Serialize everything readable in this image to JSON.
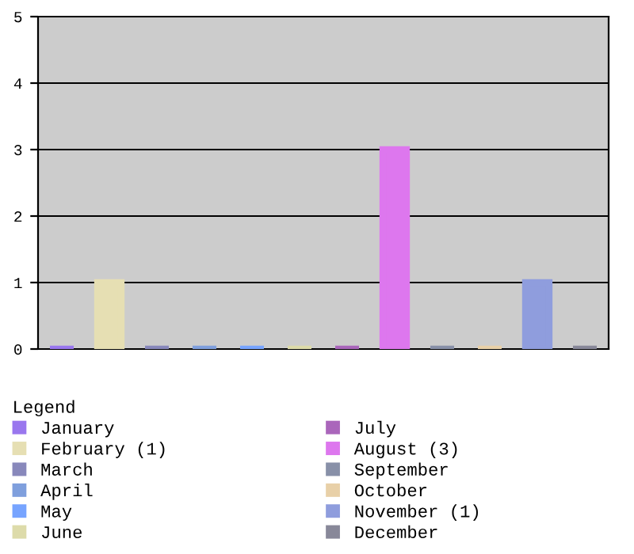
{
  "chart_data": {
    "type": "bar",
    "categories": [
      null,
      null,
      null,
      null,
      null,
      null,
      null,
      null,
      null,
      null,
      null,
      null
    ],
    "legend_title": "Legend",
    "legend": "bottom",
    "grid": "y",
    "ylim": [
      0,
      5
    ],
    "yticks": [
      0,
      1,
      2,
      3,
      4,
      5
    ],
    "series": [
      {
        "name": "January",
        "color": "#9977ee",
        "values": [
          0,
          null,
          null,
          null,
          null,
          null,
          null,
          null,
          null,
          null,
          null,
          null
        ]
      },
      {
        "name": "February (1)",
        "color": "#e6dfb3",
        "values": [
          null,
          1,
          null,
          null,
          null,
          null,
          null,
          null,
          null,
          null,
          null,
          null
        ]
      },
      {
        "name": "March",
        "color": "#8888bb",
        "values": [
          null,
          null,
          0,
          null,
          null,
          null,
          null,
          null,
          null,
          null,
          null,
          null
        ]
      },
      {
        "name": "April",
        "color": "#7f9fdd",
        "values": [
          null,
          null,
          null,
          0,
          null,
          null,
          null,
          null,
          null,
          null,
          null,
          null
        ]
      },
      {
        "name": "May",
        "color": "#77a4ff",
        "values": [
          null,
          null,
          null,
          null,
          0,
          null,
          null,
          null,
          null,
          null,
          null,
          null
        ]
      },
      {
        "name": "June",
        "color": "#dddbaa",
        "values": [
          null,
          null,
          null,
          null,
          null,
          0,
          null,
          null,
          null,
          null,
          null,
          null
        ]
      },
      {
        "name": "July",
        "color": "#aa66bb",
        "values": [
          null,
          null,
          null,
          null,
          null,
          null,
          0,
          null,
          null,
          null,
          null,
          null
        ]
      },
      {
        "name": "August (3)",
        "color": "#dd77ee",
        "values": [
          null,
          null,
          null,
          null,
          null,
          null,
          null,
          3,
          null,
          null,
          null,
          null
        ]
      },
      {
        "name": "September",
        "color": "#8890a8",
        "values": [
          null,
          null,
          null,
          null,
          null,
          null,
          null,
          null,
          0,
          null,
          null,
          null
        ]
      },
      {
        "name": "October",
        "color": "#e8d0a8",
        "values": [
          null,
          null,
          null,
          null,
          null,
          null,
          null,
          null,
          null,
          0,
          null,
          null
        ]
      },
      {
        "name": "November (1)",
        "color": "#8f9ddd",
        "values": [
          null,
          null,
          null,
          null,
          null,
          null,
          null,
          null,
          null,
          null,
          1,
          null
        ]
      },
      {
        "name": "December",
        "color": "#888899",
        "values": [
          null,
          null,
          null,
          null,
          null,
          null,
          null,
          null,
          null,
          null,
          null,
          0
        ]
      }
    ]
  }
}
